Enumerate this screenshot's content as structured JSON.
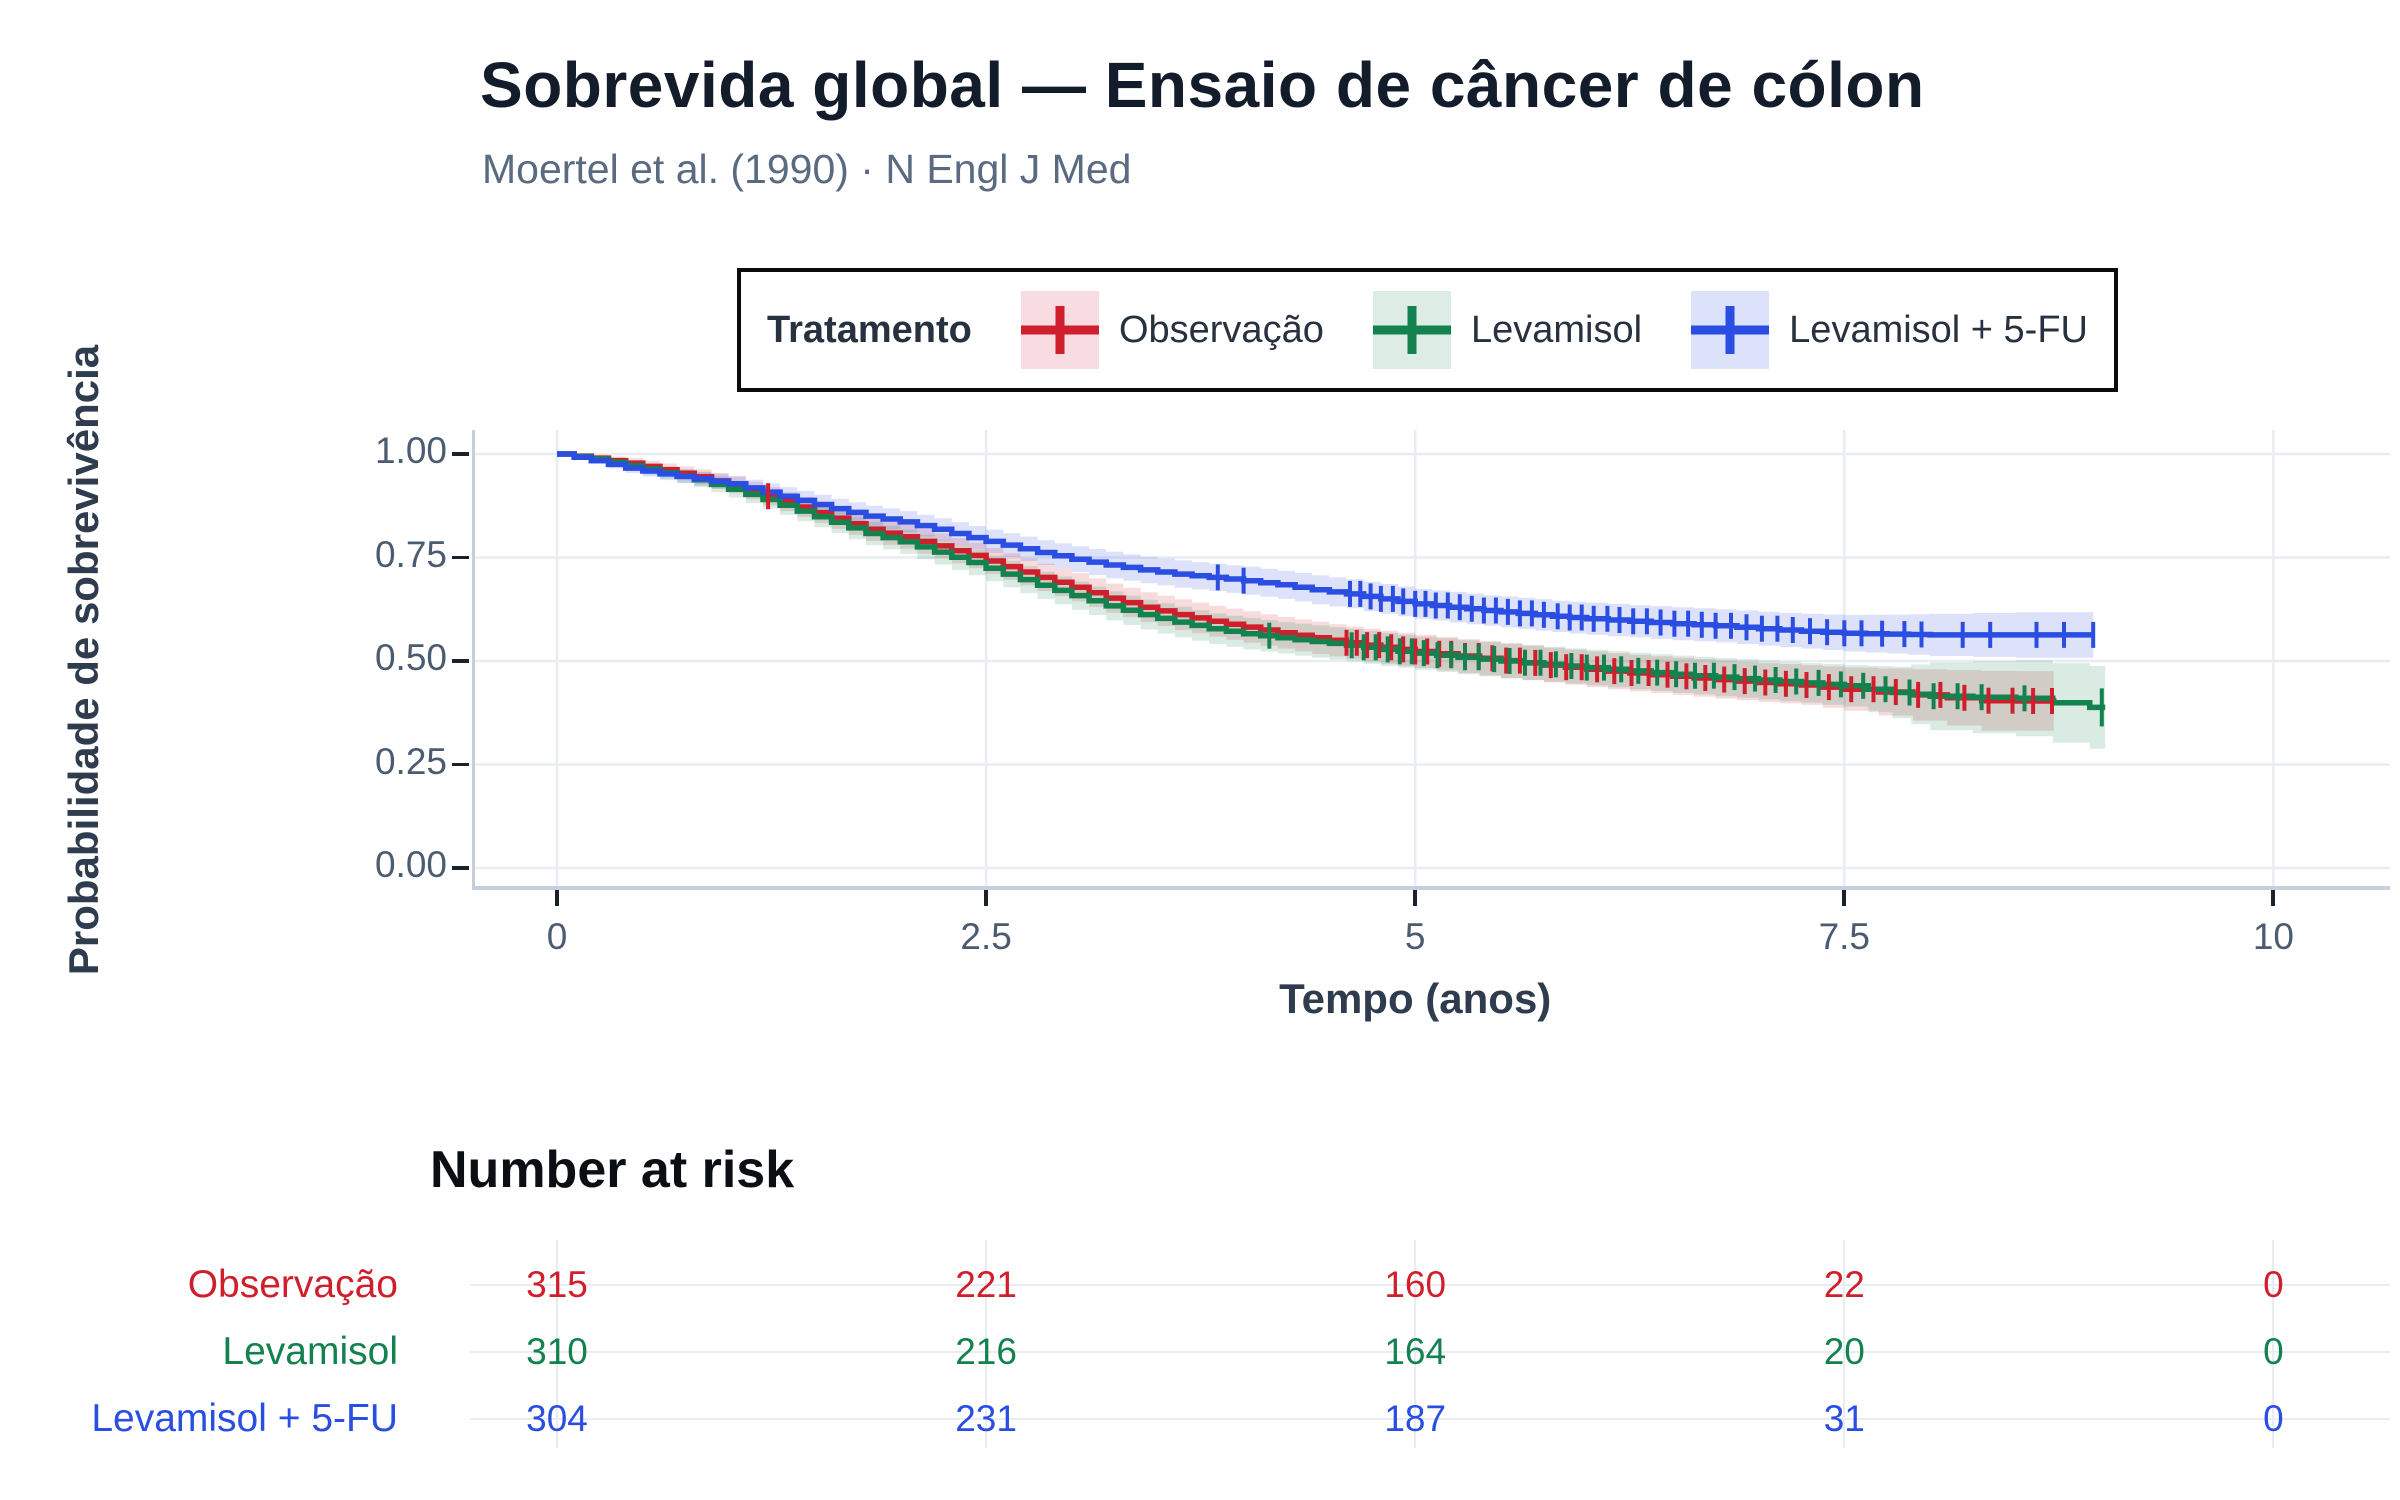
{
  "header": {
    "title": "Sobrevida global — Ensaio de câncer de cólon",
    "subtitle": "Moertel et al. (1990) · N Engl J Med"
  },
  "legend": {
    "title": "Tratamento",
    "marker": "plus-cross-icon",
    "items": [
      {
        "label": "Observação",
        "color": "#d01f2c",
        "tint": "#f9dce1"
      },
      {
        "label": "Levamisol",
        "color": "#14824f",
        "tint": "#ddede5"
      },
      {
        "label": "Levamisol + 5-FU",
        "color": "#2a4de2",
        "tint": "#dbe2fa"
      }
    ]
  },
  "chart_data": {
    "type": "line",
    "subtype": "kaplan-meier-step",
    "title": "Sobrevida global — Ensaio de câncer de cólon",
    "xlabel": "Tempo (anos)",
    "ylabel": "Probabilidade de sobrevivência",
    "xlim": [
      0,
      10.68
    ],
    "ylim": [
      0,
      1.05
    ],
    "xticks": [
      0,
      2.5,
      5,
      7.5,
      10
    ],
    "xtick_labels": [
      "0",
      "2.5",
      "5",
      "7.5",
      "10"
    ],
    "yticks": [
      0.0,
      0.25,
      0.5,
      0.75,
      1.0
    ],
    "ytick_labels": [
      "0.00",
      "0.25",
      "0.50",
      "0.75",
      "1.00"
    ],
    "grid": true,
    "legend_position": "top",
    "series": [
      {
        "name": "Observação",
        "color": "#d01f2c",
        "ci_fill": "#d01f2c",
        "points": [
          [
            0,
            1.0,
            0.004
          ],
          [
            0.2,
            0.99,
            0.008
          ],
          [
            0.4,
            0.978,
            0.012
          ],
          [
            0.6,
            0.962,
            0.015
          ],
          [
            0.8,
            0.945,
            0.018
          ],
          [
            1.0,
            0.925,
            0.02
          ],
          [
            1.2,
            0.898,
            0.022
          ],
          [
            1.4,
            0.872,
            0.024
          ],
          [
            1.6,
            0.845,
            0.026
          ],
          [
            1.8,
            0.818,
            0.028
          ],
          [
            2.0,
            0.8,
            0.029
          ],
          [
            2.2,
            0.778,
            0.03
          ],
          [
            2.4,
            0.755,
            0.031
          ],
          [
            2.6,
            0.728,
            0.032
          ],
          [
            2.8,
            0.702,
            0.033
          ],
          [
            3.0,
            0.678,
            0.034
          ],
          [
            3.2,
            0.652,
            0.035
          ],
          [
            3.4,
            0.63,
            0.036
          ],
          [
            3.6,
            0.612,
            0.037
          ],
          [
            3.8,
            0.596,
            0.037
          ],
          [
            4.0,
            0.582,
            0.038
          ],
          [
            4.2,
            0.568,
            0.038
          ],
          [
            4.4,
            0.556,
            0.039
          ],
          [
            4.6,
            0.544,
            0.039
          ],
          [
            4.8,
            0.533,
            0.04
          ],
          [
            5.0,
            0.523,
            0.04
          ],
          [
            5.25,
            0.512,
            0.041
          ],
          [
            5.5,
            0.501,
            0.042
          ],
          [
            5.75,
            0.49,
            0.042
          ],
          [
            6.0,
            0.48,
            0.043
          ],
          [
            6.25,
            0.471,
            0.044
          ],
          [
            6.5,
            0.463,
            0.045
          ],
          [
            6.75,
            0.455,
            0.046
          ],
          [
            7.0,
            0.448,
            0.047
          ],
          [
            7.25,
            0.442,
            0.048
          ],
          [
            7.5,
            0.432,
            0.052
          ],
          [
            7.9,
            0.418,
            0.062
          ],
          [
            8.3,
            0.404,
            0.072
          ],
          [
            8.72,
            0.403,
            0.072
          ]
        ],
        "censor_times": [
          1.23,
          4.6,
          4.66,
          4.72,
          4.79,
          4.86,
          4.93,
          5.0,
          5.07,
          5.14,
          5.21,
          5.29,
          5.37,
          5.45,
          5.53,
          5.61,
          5.7,
          5.79,
          5.88,
          5.97,
          6.06,
          6.16,
          6.26,
          6.36,
          6.47,
          6.58,
          6.69,
          6.8,
          6.92,
          7.04,
          7.16,
          7.28,
          7.41,
          7.54,
          7.67,
          7.8,
          7.93,
          8.06,
          8.2,
          8.34,
          8.48,
          8.6,
          8.71
        ],
        "final_censor_large": false
      },
      {
        "name": "Levamisol",
        "color": "#14824f",
        "ci_fill": "#14824f",
        "points": [
          [
            0,
            1.0,
            0.004
          ],
          [
            0.2,
            0.988,
            0.008
          ],
          [
            0.4,
            0.972,
            0.012
          ],
          [
            0.6,
            0.955,
            0.015
          ],
          [
            0.8,
            0.938,
            0.018
          ],
          [
            1.0,
            0.915,
            0.02
          ],
          [
            1.2,
            0.89,
            0.022
          ],
          [
            1.4,
            0.862,
            0.024
          ],
          [
            1.6,
            0.835,
            0.026
          ],
          [
            1.8,
            0.808,
            0.028
          ],
          [
            2.0,
            0.788,
            0.029
          ],
          [
            2.2,
            0.763,
            0.03
          ],
          [
            2.4,
            0.738,
            0.031
          ],
          [
            2.6,
            0.71,
            0.032
          ],
          [
            2.8,
            0.683,
            0.033
          ],
          [
            3.0,
            0.658,
            0.034
          ],
          [
            3.2,
            0.633,
            0.035
          ],
          [
            3.4,
            0.612,
            0.036
          ],
          [
            3.6,
            0.594,
            0.037
          ],
          [
            3.8,
            0.578,
            0.037
          ],
          [
            4.0,
            0.566,
            0.038
          ],
          [
            4.2,
            0.556,
            0.038
          ],
          [
            4.4,
            0.547,
            0.039
          ],
          [
            4.6,
            0.538,
            0.039
          ],
          [
            4.8,
            0.528,
            0.04
          ],
          [
            5.0,
            0.519,
            0.04
          ],
          [
            5.25,
            0.509,
            0.041
          ],
          [
            5.5,
            0.5,
            0.042
          ],
          [
            5.75,
            0.492,
            0.042
          ],
          [
            6.0,
            0.484,
            0.043
          ],
          [
            6.25,
            0.476,
            0.044
          ],
          [
            6.5,
            0.468,
            0.045
          ],
          [
            6.75,
            0.461,
            0.046
          ],
          [
            7.0,
            0.454,
            0.047
          ],
          [
            7.25,
            0.447,
            0.048
          ],
          [
            7.5,
            0.44,
            0.05
          ],
          [
            7.78,
            0.424,
            0.062
          ],
          [
            8.0,
            0.415,
            0.082
          ],
          [
            8.5,
            0.41,
            0.092
          ],
          [
            8.93,
            0.388,
            0.1
          ],
          [
            9.02,
            0.388,
            0.1
          ]
        ],
        "censor_times": [
          4.15,
          4.63,
          4.7,
          4.77,
          4.84,
          4.91,
          4.98,
          5.05,
          5.13,
          5.21,
          5.29,
          5.37,
          5.46,
          5.55,
          5.64,
          5.73,
          5.82,
          5.91,
          6.0,
          6.1,
          6.2,
          6.3,
          6.41,
          6.52,
          6.63,
          6.74,
          6.86,
          6.98,
          7.1,
          7.22,
          7.35,
          7.48,
          7.61,
          7.74,
          7.88,
          8.02,
          8.16,
          8.3,
          8.55,
          9.0
        ],
        "final_censor_large": true
      },
      {
        "name": "Levamisol + 5-FU",
        "color": "#2a4de2",
        "ci_fill": "#2a4de2",
        "points": [
          [
            0,
            1.0,
            0.004
          ],
          [
            0.2,
            0.984,
            0.008
          ],
          [
            0.4,
            0.966,
            0.012
          ],
          [
            0.6,
            0.952,
            0.015
          ],
          [
            0.8,
            0.94,
            0.017
          ],
          [
            1.0,
            0.928,
            0.019
          ],
          [
            1.2,
            0.908,
            0.021
          ],
          [
            1.4,
            0.888,
            0.023
          ],
          [
            1.6,
            0.868,
            0.024
          ],
          [
            1.8,
            0.85,
            0.025
          ],
          [
            2.0,
            0.836,
            0.026
          ],
          [
            2.2,
            0.818,
            0.027
          ],
          [
            2.4,
            0.798,
            0.028
          ],
          [
            2.6,
            0.78,
            0.029
          ],
          [
            2.8,
            0.762,
            0.03
          ],
          [
            3.0,
            0.746,
            0.031
          ],
          [
            3.2,
            0.732,
            0.032
          ],
          [
            3.4,
            0.72,
            0.032
          ],
          [
            3.6,
            0.71,
            0.033
          ],
          [
            3.8,
            0.702,
            0.033
          ],
          [
            4.0,
            0.694,
            0.034
          ],
          [
            4.2,
            0.684,
            0.034
          ],
          [
            4.4,
            0.672,
            0.035
          ],
          [
            4.6,
            0.662,
            0.035
          ],
          [
            4.8,
            0.65,
            0.036
          ],
          [
            5.0,
            0.638,
            0.036
          ],
          [
            5.2,
            0.63,
            0.037
          ],
          [
            5.4,
            0.622,
            0.037
          ],
          [
            5.6,
            0.615,
            0.038
          ],
          [
            5.8,
            0.608,
            0.038
          ],
          [
            6.0,
            0.602,
            0.039
          ],
          [
            6.25,
            0.596,
            0.039
          ],
          [
            6.5,
            0.59,
            0.04
          ],
          [
            6.75,
            0.585,
            0.04
          ],
          [
            7.0,
            0.578,
            0.041
          ],
          [
            7.25,
            0.572,
            0.042
          ],
          [
            7.5,
            0.567,
            0.044
          ],
          [
            7.75,
            0.565,
            0.047
          ],
          [
            8.0,
            0.563,
            0.051
          ],
          [
            8.5,
            0.563,
            0.055
          ],
          [
            8.95,
            0.563,
            0.055
          ]
        ],
        "censor_times": [
          3.85,
          4.0,
          4.62,
          4.68,
          4.74,
          4.8,
          4.87,
          4.93,
          5.0,
          5.06,
          5.12,
          5.19,
          5.26,
          5.33,
          5.4,
          5.47,
          5.54,
          5.61,
          5.68,
          5.75,
          5.83,
          5.9,
          5.97,
          6.04,
          6.12,
          6.19,
          6.27,
          6.35,
          6.43,
          6.51,
          6.59,
          6.67,
          6.75,
          6.84,
          6.93,
          7.02,
          7.11,
          7.2,
          7.3,
          7.4,
          7.5,
          7.6,
          7.72,
          7.85,
          7.95,
          8.19,
          8.35,
          8.62,
          8.78,
          8.95
        ],
        "final_censor_large": false
      }
    ]
  },
  "risk_table": {
    "title": "Number at risk",
    "times": [
      0,
      2.5,
      5,
      7.5,
      10
    ],
    "rows": [
      {
        "label": "Observação",
        "color": "#d01f2c",
        "values": [
          "315",
          "221",
          "160",
          "22",
          "0"
        ]
      },
      {
        "label": "Levamisol",
        "color": "#14824f",
        "values": [
          "310",
          "216",
          "164",
          "20",
          "0"
        ]
      },
      {
        "label": "Levamisol + 5-FU",
        "color": "#2a4de2",
        "values": [
          "304",
          "231",
          "187",
          "31",
          "0"
        ]
      }
    ]
  },
  "colors": {
    "background": "#ffffff",
    "title": "#131c2b",
    "subtitle": "#5a6a80",
    "grid": "#e9edf3",
    "axis_line": "#c6d0dc",
    "tick_mark": "#1a222c",
    "tick_label": "#4b5b70",
    "axis_title": "#2e3c4e",
    "legend_border": "#0c0c0c",
    "legend_text": "#27313f",
    "risk_title": "#0b0f14"
  }
}
